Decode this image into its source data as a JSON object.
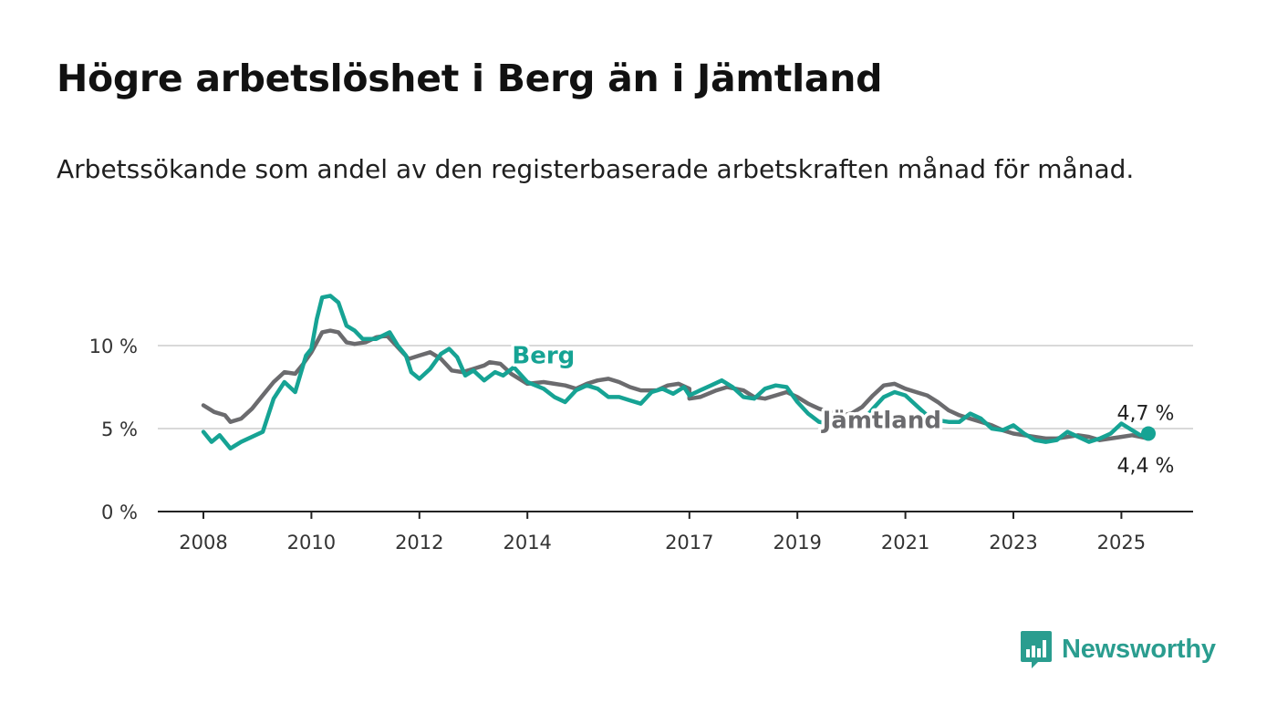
{
  "title": "Högre arbetslöshet i Berg än i Jämtland",
  "subtitle": "Arbetssökande som andel av den registerbaserade arbetskraften månad för månad.",
  "logo": {
    "text": "Newsworthy",
    "icon": "newsworthy-bar-chart-icon",
    "color": "#2a9d8f"
  },
  "chart_data": {
    "type": "line",
    "x_unit": "year",
    "x_ticks": [
      2008,
      2010,
      2012,
      2014,
      2017,
      2019,
      2021,
      2023,
      2025
    ],
    "x_range": [
      2007.2,
      2026.35
    ],
    "y_ticks": [
      0,
      5,
      10
    ],
    "y_tick_labels": [
      "0 %",
      "5 %",
      "10 %"
    ],
    "ylim": [
      0,
      14
    ],
    "grid": "horizontal",
    "series": [
      {
        "name": "Jämtland",
        "color": "#6b6b6e",
        "end_label": "4,4 %",
        "label_at": 2019.7,
        "points": [
          [
            2008.0,
            6.4
          ],
          [
            2008.2,
            6.0
          ],
          [
            2008.4,
            5.8
          ],
          [
            2008.5,
            5.4
          ],
          [
            2008.7,
            5.6
          ],
          [
            2008.9,
            6.2
          ],
          [
            2009.1,
            7.0
          ],
          [
            2009.3,
            7.8
          ],
          [
            2009.5,
            8.4
          ],
          [
            2009.7,
            8.3
          ],
          [
            2009.85,
            8.9
          ],
          [
            2010.0,
            9.6
          ],
          [
            2010.1,
            10.2
          ],
          [
            2010.2,
            10.8
          ],
          [
            2010.35,
            10.9
          ],
          [
            2010.5,
            10.8
          ],
          [
            2010.65,
            10.2
          ],
          [
            2010.8,
            10.1
          ],
          [
            2011.0,
            10.2
          ],
          [
            2011.2,
            10.5
          ],
          [
            2011.4,
            10.6
          ],
          [
            2011.6,
            9.9
          ],
          [
            2011.8,
            9.2
          ],
          [
            2012.0,
            9.4
          ],
          [
            2012.2,
            9.6
          ],
          [
            2012.4,
            9.2
          ],
          [
            2012.6,
            8.5
          ],
          [
            2012.8,
            8.4
          ],
          [
            2013.0,
            8.6
          ],
          [
            2013.2,
            8.8
          ],
          [
            2013.3,
            9.0
          ],
          [
            2013.5,
            8.9
          ],
          [
            2013.7,
            8.3
          ],
          [
            2014.0,
            7.7
          ],
          [
            2014.3,
            7.8
          ],
          [
            2014.5,
            7.7
          ],
          [
            2014.7,
            7.6
          ],
          [
            2014.9,
            7.4
          ],
          [
            2015.1,
            7.7
          ],
          [
            2015.3,
            7.9
          ],
          [
            2015.5,
            8.0
          ],
          [
            2015.7,
            7.8
          ],
          [
            2015.9,
            7.5
          ],
          [
            2016.1,
            7.3
          ],
          [
            2016.4,
            7.3
          ],
          [
            2016.6,
            7.6
          ],
          [
            2016.8,
            7.7
          ],
          [
            2017.0,
            7.4
          ],
          [
            2017.0,
            6.8
          ],
          [
            2017.2,
            6.9
          ],
          [
            2017.5,
            7.3
          ],
          [
            2017.7,
            7.5
          ],
          [
            2018.0,
            7.3
          ],
          [
            2018.2,
            6.9
          ],
          [
            2018.4,
            6.8
          ],
          [
            2018.6,
            7.0
          ],
          [
            2018.8,
            7.2
          ],
          [
            2019.0,
            6.9
          ],
          [
            2019.2,
            6.5
          ],
          [
            2019.4,
            6.2
          ],
          [
            2019.6,
            6.0
          ],
          [
            2019.8,
            5.8
          ],
          [
            2020.0,
            5.9
          ],
          [
            2020.2,
            6.3
          ],
          [
            2020.4,
            7.0
          ],
          [
            2020.6,
            7.6
          ],
          [
            2020.8,
            7.7
          ],
          [
            2021.0,
            7.4
          ],
          [
            2021.2,
            7.2
          ],
          [
            2021.4,
            7.0
          ],
          [
            2021.6,
            6.6
          ],
          [
            2021.8,
            6.1
          ],
          [
            2022.0,
            5.8
          ],
          [
            2022.2,
            5.6
          ],
          [
            2022.4,
            5.4
          ],
          [
            2022.6,
            5.2
          ],
          [
            2022.8,
            4.9
          ],
          [
            2023.0,
            4.7
          ],
          [
            2023.2,
            4.6
          ],
          [
            2023.4,
            4.5
          ],
          [
            2023.6,
            4.4
          ],
          [
            2023.8,
            4.4
          ],
          [
            2024.0,
            4.5
          ],
          [
            2024.2,
            4.6
          ],
          [
            2024.4,
            4.5
          ],
          [
            2024.6,
            4.3
          ],
          [
            2024.8,
            4.4
          ],
          [
            2025.0,
            4.5
          ],
          [
            2025.2,
            4.6
          ],
          [
            2025.35,
            4.5
          ],
          [
            2025.5,
            4.4
          ]
        ]
      },
      {
        "name": "Berg",
        "color": "#16a394",
        "end_label": "4,7 %",
        "label_at": 2013.75,
        "points": [
          [
            2008.0,
            4.8
          ],
          [
            2008.15,
            4.2
          ],
          [
            2008.3,
            4.6
          ],
          [
            2008.5,
            3.8
          ],
          [
            2008.7,
            4.2
          ],
          [
            2008.9,
            4.5
          ],
          [
            2009.1,
            4.8
          ],
          [
            2009.3,
            6.8
          ],
          [
            2009.5,
            7.8
          ],
          [
            2009.7,
            7.2
          ],
          [
            2009.9,
            9.4
          ],
          [
            2010.0,
            9.8
          ],
          [
            2010.1,
            11.6
          ],
          [
            2010.2,
            12.9
          ],
          [
            2010.35,
            13.0
          ],
          [
            2010.5,
            12.6
          ],
          [
            2010.65,
            11.2
          ],
          [
            2010.8,
            10.9
          ],
          [
            2010.95,
            10.4
          ],
          [
            2011.2,
            10.4
          ],
          [
            2011.45,
            10.8
          ],
          [
            2011.6,
            10.0
          ],
          [
            2011.75,
            9.4
          ],
          [
            2011.85,
            8.4
          ],
          [
            2012.0,
            8.0
          ],
          [
            2012.2,
            8.6
          ],
          [
            2012.4,
            9.5
          ],
          [
            2012.55,
            9.8
          ],
          [
            2012.7,
            9.3
          ],
          [
            2012.85,
            8.2
          ],
          [
            2013.0,
            8.5
          ],
          [
            2013.2,
            7.9
          ],
          [
            2013.4,
            8.4
          ],
          [
            2013.55,
            8.2
          ],
          [
            2013.75,
            8.7
          ],
          [
            2014.0,
            7.8
          ],
          [
            2014.3,
            7.4
          ],
          [
            2014.5,
            6.9
          ],
          [
            2014.7,
            6.6
          ],
          [
            2014.9,
            7.3
          ],
          [
            2015.1,
            7.6
          ],
          [
            2015.3,
            7.4
          ],
          [
            2015.5,
            6.9
          ],
          [
            2015.7,
            6.9
          ],
          [
            2015.9,
            6.7
          ],
          [
            2016.1,
            6.5
          ],
          [
            2016.3,
            7.2
          ],
          [
            2016.5,
            7.4
          ],
          [
            2016.7,
            7.1
          ],
          [
            2016.9,
            7.5
          ],
          [
            2017.0,
            7.0
          ],
          [
            2017.2,
            7.3
          ],
          [
            2017.4,
            7.6
          ],
          [
            2017.6,
            7.9
          ],
          [
            2017.8,
            7.5
          ],
          [
            2018.0,
            6.9
          ],
          [
            2018.2,
            6.8
          ],
          [
            2018.4,
            7.4
          ],
          [
            2018.6,
            7.6
          ],
          [
            2018.8,
            7.5
          ],
          [
            2019.0,
            6.6
          ],
          [
            2019.2,
            5.9
          ],
          [
            2019.4,
            5.4
          ],
          [
            2019.6,
            5.3
          ],
          [
            2019.8,
            5.1
          ],
          [
            2020.0,
            5.2
          ],
          [
            2020.2,
            5.4
          ],
          [
            2020.4,
            6.2
          ],
          [
            2020.6,
            6.9
          ],
          [
            2020.8,
            7.2
          ],
          [
            2021.0,
            7.0
          ],
          [
            2021.2,
            6.4
          ],
          [
            2021.4,
            5.8
          ],
          [
            2021.6,
            5.5
          ],
          [
            2021.8,
            5.4
          ],
          [
            2022.0,
            5.4
          ],
          [
            2022.2,
            5.9
          ],
          [
            2022.4,
            5.6
          ],
          [
            2022.6,
            5.0
          ],
          [
            2022.8,
            4.9
          ],
          [
            2023.0,
            5.2
          ],
          [
            2023.2,
            4.7
          ],
          [
            2023.4,
            4.3
          ],
          [
            2023.6,
            4.2
          ],
          [
            2023.8,
            4.3
          ],
          [
            2024.0,
            4.8
          ],
          [
            2024.2,
            4.5
          ],
          [
            2024.4,
            4.2
          ],
          [
            2024.6,
            4.4
          ],
          [
            2024.8,
            4.7
          ],
          [
            2025.0,
            5.3
          ],
          [
            2025.2,
            4.9
          ],
          [
            2025.35,
            4.6
          ],
          [
            2025.5,
            4.7
          ]
        ]
      }
    ]
  }
}
